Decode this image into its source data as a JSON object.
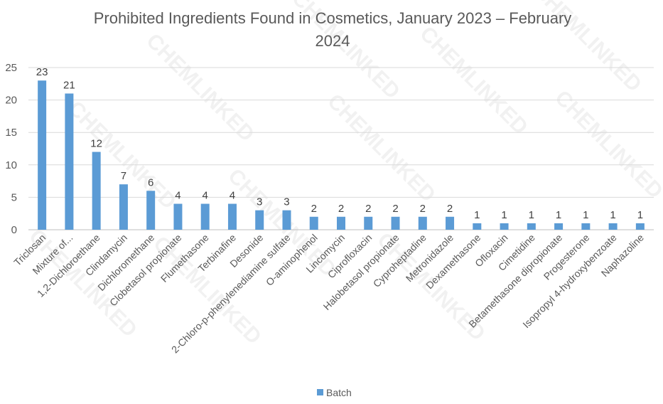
{
  "chart_data": {
    "type": "bar",
    "title_line1": "Prohibited Ingredients Found in Cosmetics, January 2023 – February",
    "title_line2": "2024",
    "categories": [
      "Triclosan",
      "Mixture of...",
      "1,2-Dichloroethane",
      "Clindamycin",
      "Dichloromethane",
      "Clobetasol propionate",
      "Flumethasone",
      "Terbinafine",
      "Desonide",
      "2-Chloro-p-phenylenediamine sulfate",
      "O-aminophenol",
      "Lincomycin",
      "Ciprofloxacin",
      "Halobetasol propionate",
      "Cyproheptadine",
      "Metronidazole",
      "Dexamethasone",
      "Ofloxacin",
      "Cimetidine",
      "Betamethasone dipropionate",
      "Progesterone",
      "Isopropyl 4-hydroxybenzoate",
      "Naphazoline"
    ],
    "series": [
      {
        "name": "Batch",
        "values": [
          23,
          21,
          12,
          7,
          6,
          4,
          4,
          4,
          3,
          3,
          2,
          2,
          2,
          2,
          2,
          2,
          1,
          1,
          1,
          1,
          1,
          1,
          1
        ],
        "color": "#5B9BD5"
      }
    ],
    "yticks": [
      0,
      5,
      10,
      15,
      20,
      25
    ],
    "ylim": [
      0,
      25
    ],
    "grid": true,
    "legend": "bottom",
    "xlabel": "",
    "ylabel": ""
  },
  "watermark": "CHEMLINKED"
}
